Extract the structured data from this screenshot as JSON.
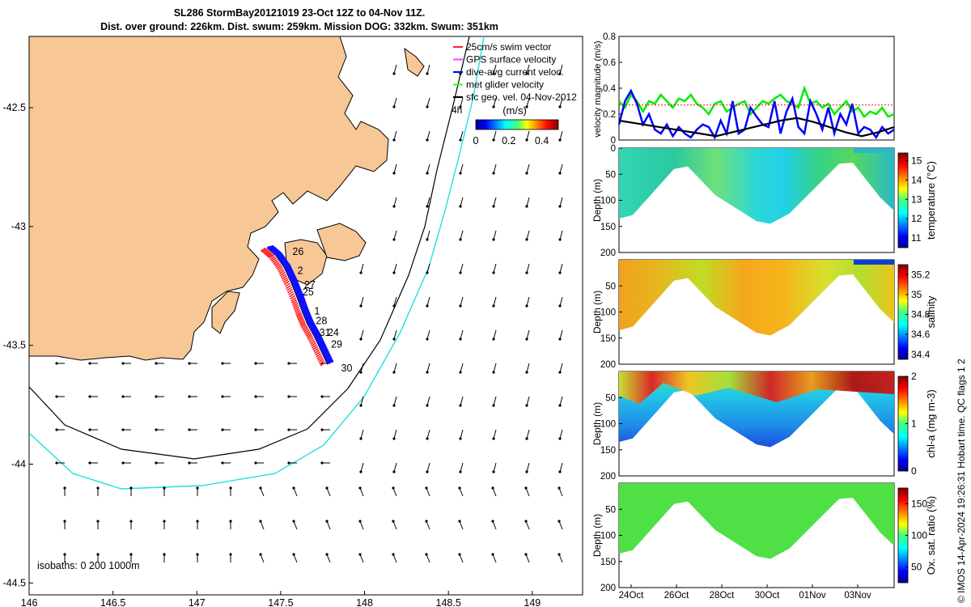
{
  "title": {
    "line1": "SL286 StormBay20121019 23-Oct 12Z to 04-Nov 11Z.",
    "line2": "Dist. over ground: 226km. Dist. swum: 259km. Mission DOG: 332km. Swum: 351km"
  },
  "side_label": "© IMOS 14-Apr-2024 19:26:31 Hobart time. QC flags 1  2",
  "chart_data": [
    {
      "type": "scatter",
      "id": "track-map",
      "xlim": [
        146,
        149.3
      ],
      "ylim": [
        -44.55,
        -42.2
      ],
      "x_ticks": [
        "146",
        "146.5",
        "147",
        "147.5",
        "148",
        "148.5",
        "149"
      ],
      "y_ticks": [
        "-42.5",
        "-43",
        "-43.5",
        "-44",
        "-44.5"
      ],
      "legend": {
        "placement": "top-right",
        "entries": [
          {
            "label": "25cm/s swim vector",
            "color": "#ff2020"
          },
          {
            "label": "GPS surface velocity",
            "color": "#ff40ff"
          },
          {
            "label": "dive-avg current veloc.",
            "color": "#0000ff"
          },
          {
            "label": "met glider velocity",
            "color": "#20ff20"
          },
          {
            "label": "sfc geo. vel. 04-Nov-2012",
            "color": "#000000"
          }
        ],
        "extra": "4h"
      },
      "colorbar": {
        "title": "(m/s)",
        "ticks": [
          "0",
          "0.2",
          "0.4"
        ],
        "range": [
          0,
          0.5
        ]
      },
      "isobaths_label": "isobaths: 0   200  1000m",
      "day_labels": [
        {
          "label": "26",
          "lon": 147.57,
          "lat": -43.12
        },
        {
          "label": "2",
          "lon": 147.6,
          "lat": -43.2
        },
        {
          "label": "27",
          "lon": 147.64,
          "lat": -43.26
        },
        {
          "label": "25",
          "lon": 147.63,
          "lat": -43.29
        },
        {
          "label": "1",
          "lon": 147.7,
          "lat": -43.37
        },
        {
          "label": "28",
          "lon": 147.71,
          "lat": -43.41
        },
        {
          "label": "31",
          "lon": 147.73,
          "lat": -43.46
        },
        {
          "label": "24",
          "lon": 147.78,
          "lat": -43.46
        },
        {
          "label": "29",
          "lon": 147.8,
          "lat": -43.51
        },
        {
          "label": "30",
          "lon": 147.86,
          "lat": -43.61
        }
      ],
      "track": [
        [
          147.42,
          -43.09
        ],
        [
          147.47,
          -43.12
        ],
        [
          147.52,
          -43.17
        ],
        [
          147.56,
          -43.23
        ],
        [
          147.6,
          -43.3
        ],
        [
          147.63,
          -43.36
        ],
        [
          147.66,
          -43.41
        ],
        [
          147.7,
          -43.46
        ],
        [
          147.74,
          -43.52
        ],
        [
          147.78,
          -43.58
        ]
      ]
    },
    {
      "type": "line",
      "id": "velocity-panel",
      "ylabel": "velocity magnitude (m/s)",
      "ylim": [
        0,
        0.8
      ],
      "y_ticks": [
        "0",
        "0.2",
        "0.4",
        "0.6",
        "0.8"
      ],
      "x_range_days": [
        23.5,
        35.5
      ],
      "series": [
        {
          "color": "#00ee00",
          "values": [
            0.3,
            0.25,
            0.35,
            0.3,
            0.22,
            0.3,
            0.28,
            0.35,
            0.3,
            0.25,
            0.32,
            0.3,
            0.35,
            0.28,
            0.25,
            0.2,
            0.28,
            0.3,
            0.22,
            0.25,
            0.28,
            0.3,
            0.2,
            0.25,
            0.3,
            0.28,
            0.32,
            0.35,
            0.3,
            0.28,
            0.25,
            0.4,
            0.28,
            0.3,
            0.25,
            0.28,
            0.2,
            0.25,
            0.3,
            0.22,
            0.25,
            0.18,
            0.22,
            0.2,
            0.25,
            0.18,
            0.2
          ]
        },
        {
          "color": "#0000ff",
          "values": [
            0.12,
            0.3,
            0.38,
            0.28,
            0.12,
            0.2,
            0.08,
            0.05,
            0.12,
            0.03,
            0.1,
            0.05,
            0.02,
            0.08,
            0.12,
            0.1,
            0.02,
            0.15,
            0.05,
            0.3,
            0.05,
            0.08,
            0.25,
            0.18,
            0.12,
            0.1,
            0.3,
            0.05,
            0.22,
            0.32,
            0.1,
            0.05,
            0.3,
            0.2,
            0.08,
            0.25,
            0.05,
            0.2,
            0.12,
            0.28,
            0.05,
            0.1,
            0.08,
            0.02,
            0.1,
            0.05,
            0.08
          ]
        },
        {
          "color": "#000000",
          "values": [
            0.15,
            0.13,
            0.11,
            0.09,
            0.07,
            0.05,
            0.03,
            0.06,
            0.09,
            0.12,
            0.15,
            0.17,
            0.14,
            0.1,
            0.06,
            0.03,
            0.06,
            0.1
          ]
        },
        {
          "color": "#ff0000",
          "values": [
            0.27,
            0.27
          ]
        }
      ]
    },
    {
      "type": "heatmap",
      "id": "temperature-section",
      "ylabel": "Depth (m)",
      "ylim": [
        200,
        0
      ],
      "y_ticks": [
        "0",
        "50",
        "100",
        "150",
        "200"
      ],
      "colorbar_label": "temperature (°C)",
      "colorbar_ticks": [
        "11",
        "12",
        "13",
        "14",
        "15"
      ],
      "colorbar_range": [
        10.5,
        15.4
      ],
      "colorbar_palette": "jet"
    },
    {
      "type": "heatmap",
      "id": "salinity-section",
      "ylabel": "Depth (m)",
      "ylim": [
        200,
        0
      ],
      "y_ticks": [
        "50",
        "100",
        "150",
        "200"
      ],
      "colorbar_label": "salinity",
      "colorbar_ticks": [
        "34.4",
        "34.6",
        "34.8",
        "35",
        "35.2"
      ],
      "colorbar_range": [
        34.35,
        35.3
      ],
      "colorbar_palette": "jet"
    },
    {
      "type": "heatmap",
      "id": "chl-section",
      "ylabel": "Depth (m)",
      "ylim": [
        200,
        0
      ],
      "y_ticks": [
        "50",
        "100",
        "150",
        "200"
      ],
      "colorbar_label": "chl-a (mg m-3)",
      "colorbar_ticks": [
        "0",
        "1",
        "2"
      ],
      "colorbar_range": [
        0,
        2
      ],
      "colorbar_palette": "jet"
    },
    {
      "type": "heatmap",
      "id": "oxygen-section",
      "ylabel": "Depth (m)",
      "ylim": [
        200,
        0
      ],
      "y_ticks": [
        "50",
        "100",
        "150",
        "200"
      ],
      "colorbar_label": "Ox. sat. ratio (%)",
      "colorbar_ticks": [
        "50",
        "100",
        "150"
      ],
      "colorbar_range": [
        25,
        175
      ],
      "colorbar_palette": "jet",
      "x_ticks": [
        "24Oct",
        "26Oct",
        "28Oct",
        "30Oct",
        "01Nov",
        "03Nov"
      ]
    }
  ]
}
